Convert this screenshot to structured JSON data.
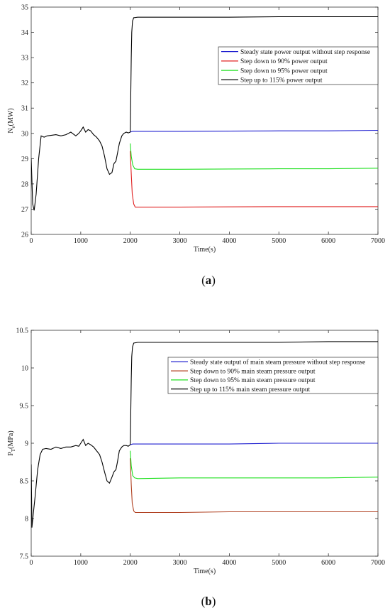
{
  "chart_data": [
    {
      "type": "line",
      "panel": "a",
      "caption_letter": "a",
      "xlabel": "Time(s)",
      "ylabel": "N",
      "ylabel_sub": "e",
      "ylabel_unit": "(MW)",
      "xlim": [
        0,
        7000
      ],
      "ylim": [
        26,
        35
      ],
      "xticks": [
        0,
        1000,
        2000,
        3000,
        4000,
        5000,
        6000,
        7000
      ],
      "yticks": [
        26,
        27,
        28,
        29,
        30,
        31,
        32,
        33,
        34,
        35
      ],
      "legend_position": "top-right",
      "grid": false,
      "history": [
        [
          0,
          29.0
        ],
        [
          30,
          27.2
        ],
        [
          60,
          26.95
        ],
        [
          100,
          27.6
        ],
        [
          150,
          29.0
        ],
        [
          200,
          29.9
        ],
        [
          260,
          29.85
        ],
        [
          320,
          29.9
        ],
        [
          400,
          29.92
        ],
        [
          500,
          29.95
        ],
        [
          600,
          29.9
        ],
        [
          700,
          29.95
        ],
        [
          800,
          30.05
        ],
        [
          900,
          29.9
        ],
        [
          960,
          30.0
        ],
        [
          1000,
          30.1
        ],
        [
          1050,
          30.25
        ],
        [
          1100,
          30.05
        ],
        [
          1150,
          30.15
        ],
        [
          1200,
          30.1
        ],
        [
          1260,
          29.95
        ],
        [
          1320,
          29.85
        ],
        [
          1380,
          29.7
        ],
        [
          1430,
          29.5
        ],
        [
          1480,
          29.1
        ],
        [
          1530,
          28.6
        ],
        [
          1580,
          28.38
        ],
        [
          1630,
          28.45
        ],
        [
          1670,
          28.8
        ],
        [
          1710,
          28.9
        ],
        [
          1740,
          29.2
        ],
        [
          1780,
          29.6
        ],
        [
          1830,
          29.9
        ],
        [
          1870,
          30.0
        ],
        [
          1920,
          30.05
        ],
        [
          1960,
          30.02
        ],
        [
          2000,
          30.05
        ]
      ],
      "series": [
        {
          "name": "Steady state power output without step response",
          "color": "#2020d0",
          "values": [
            [
              2000,
              30.05
            ],
            [
              2050,
              30.08
            ],
            [
              3000,
              30.08
            ],
            [
              4000,
              30.09
            ],
            [
              5000,
              30.1
            ],
            [
              6000,
              30.1
            ],
            [
              7000,
              30.12
            ]
          ]
        },
        {
          "name": "Step down to 90% power output",
          "color": "#e02020",
          "values": [
            [
              2000,
              29.3
            ],
            [
              2020,
              28.4
            ],
            [
              2040,
              27.6
            ],
            [
              2070,
              27.2
            ],
            [
              2100,
              27.08
            ],
            [
              3000,
              27.08
            ],
            [
              4000,
              27.09
            ],
            [
              5000,
              27.1
            ],
            [
              6000,
              27.1
            ],
            [
              7000,
              27.1
            ]
          ]
        },
        {
          "name": "Step down to 95% power output",
          "color": "#20e020",
          "values": [
            [
              2000,
              29.6
            ],
            [
              2020,
              29.1
            ],
            [
              2050,
              28.75
            ],
            [
              2090,
              28.6
            ],
            [
              2150,
              28.58
            ],
            [
              3000,
              28.58
            ],
            [
              4000,
              28.59
            ],
            [
              5000,
              28.6
            ],
            [
              6000,
              28.6
            ],
            [
              7000,
              28.62
            ]
          ]
        },
        {
          "name": "Step up to 115% power output",
          "color": "#000000",
          "values": [
            [
              2000,
              30.05
            ],
            [
              2010,
              31.5
            ],
            [
              2020,
              33.0
            ],
            [
              2030,
              34.0
            ],
            [
              2045,
              34.45
            ],
            [
              2070,
              34.58
            ],
            [
              2150,
              34.6
            ],
            [
              3000,
              34.6
            ],
            [
              4000,
              34.6
            ],
            [
              5000,
              34.62
            ],
            [
              6000,
              34.62
            ],
            [
              7000,
              34.62
            ]
          ]
        }
      ]
    },
    {
      "type": "line",
      "panel": "b",
      "caption_letter": "b",
      "xlabel": "Time(s)",
      "ylabel": "P",
      "ylabel_sub": "T",
      "ylabel_unit": "(MPa)",
      "xlim": [
        0,
        7000
      ],
      "ylim": [
        7.5,
        10.5
      ],
      "xticks": [
        0,
        1000,
        2000,
        3000,
        4000,
        5000,
        6000,
        7000
      ],
      "yticks": [
        7.5,
        8,
        8.5,
        9,
        9.5,
        10,
        10.5
      ],
      "legend_position": "top-right",
      "grid": false,
      "history": [
        [
          0,
          8.72
        ],
        [
          15,
          7.88
        ],
        [
          40,
          8.05
        ],
        [
          80,
          8.3
        ],
        [
          130,
          8.65
        ],
        [
          180,
          8.85
        ],
        [
          230,
          8.92
        ],
        [
          300,
          8.93
        ],
        [
          400,
          8.92
        ],
        [
          500,
          8.95
        ],
        [
          600,
          8.93
        ],
        [
          700,
          8.95
        ],
        [
          800,
          8.95
        ],
        [
          900,
          8.97
        ],
        [
          960,
          8.96
        ],
        [
          1000,
          9.0
        ],
        [
          1050,
          9.05
        ],
        [
          1100,
          8.97
        ],
        [
          1150,
          9.0
        ],
        [
          1200,
          8.98
        ],
        [
          1260,
          8.95
        ],
        [
          1320,
          8.9
        ],
        [
          1380,
          8.85
        ],
        [
          1430,
          8.75
        ],
        [
          1480,
          8.62
        ],
        [
          1530,
          8.5
        ],
        [
          1580,
          8.47
        ],
        [
          1630,
          8.55
        ],
        [
          1670,
          8.62
        ],
        [
          1710,
          8.65
        ],
        [
          1740,
          8.75
        ],
        [
          1780,
          8.9
        ],
        [
          1830,
          8.95
        ],
        [
          1870,
          8.97
        ],
        [
          1920,
          8.97
        ],
        [
          1960,
          8.96
        ],
        [
          2000,
          8.98
        ]
      ],
      "series": [
        {
          "name": "Steady state output of main steam pressure without step response",
          "color": "#2020d0",
          "values": [
            [
              2000,
              8.98
            ],
            [
              2050,
              8.99
            ],
            [
              3000,
              8.99
            ],
            [
              4000,
              8.99
            ],
            [
              5000,
              9.0
            ],
            [
              6000,
              9.0
            ],
            [
              7000,
              9.0
            ]
          ]
        },
        {
          "name": "Step down to 90% main steam pressure output",
          "color": "#b04020",
          "values": [
            [
              2000,
              8.8
            ],
            [
              2020,
              8.45
            ],
            [
              2040,
              8.2
            ],
            [
              2070,
              8.1
            ],
            [
              2100,
              8.08
            ],
            [
              3000,
              8.08
            ],
            [
              4000,
              8.09
            ],
            [
              5000,
              8.09
            ],
            [
              6000,
              8.09
            ],
            [
              7000,
              8.09
            ]
          ]
        },
        {
          "name": "Step down to 95% main steam pressure output",
          "color": "#20e020",
          "values": [
            [
              2000,
              8.9
            ],
            [
              2020,
              8.7
            ],
            [
              2050,
              8.57
            ],
            [
              2090,
              8.54
            ],
            [
              2150,
              8.53
            ],
            [
              3000,
              8.54
            ],
            [
              4000,
              8.54
            ],
            [
              5000,
              8.54
            ],
            [
              6000,
              8.54
            ],
            [
              7000,
              8.55
            ]
          ]
        },
        {
          "name": "Step up to 115% main steam pressure output",
          "color": "#000000",
          "values": [
            [
              2000,
              8.98
            ],
            [
              2010,
              9.4
            ],
            [
              2020,
              9.85
            ],
            [
              2030,
              10.15
            ],
            [
              2045,
              10.28
            ],
            [
              2070,
              10.33
            ],
            [
              2150,
              10.34
            ],
            [
              3000,
              10.34
            ],
            [
              4000,
              10.34
            ],
            [
              5000,
              10.34
            ],
            [
              6000,
              10.35
            ],
            [
              7000,
              10.35
            ]
          ]
        }
      ]
    }
  ]
}
